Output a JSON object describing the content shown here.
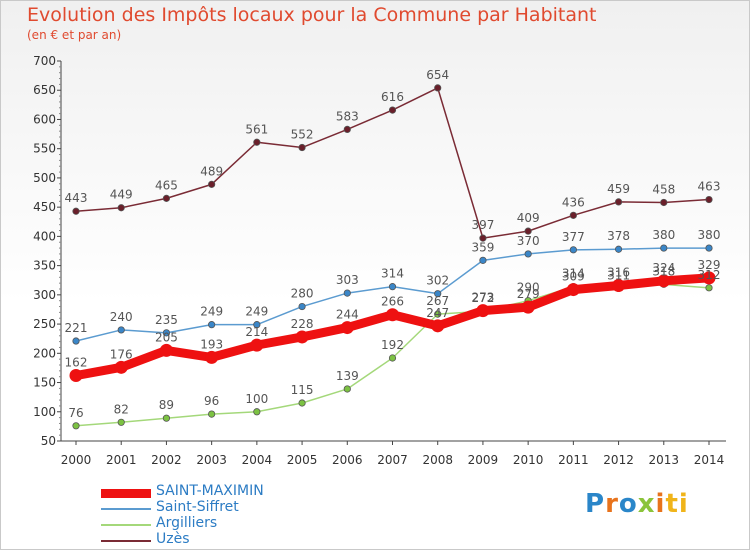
{
  "chart_data": {
    "type": "line",
    "title": "Evolution des Impôts locaux pour la Commune par Habitant",
    "subtitle": "(en € et par an)",
    "xlabel": "",
    "ylabel": "",
    "ylim": [
      50,
      700
    ],
    "yticks": [
      50,
      100,
      150,
      200,
      250,
      300,
      350,
      400,
      450,
      500,
      550,
      600,
      650,
      700
    ],
    "grid": false,
    "legend_position": "bottom-left",
    "categories": [
      "2000",
      "2001",
      "2002",
      "2003",
      "2004",
      "2005",
      "2006",
      "2007",
      "2008",
      "2009",
      "2010",
      "2011",
      "2012",
      "2013",
      "2014"
    ],
    "series": [
      {
        "name": "Uzès",
        "color": "#7a2b35",
        "marker": "#6a1f2a",
        "values": [
          443,
          449,
          465,
          489,
          561,
          552,
          583,
          616,
          654,
          397,
          409,
          436,
          459,
          458,
          463
        ],
        "labels": [
          "443",
          "449",
          "465",
          "489",
          "561",
          "552",
          "583",
          "616",
          "654",
          "397",
          "409",
          "436",
          "459",
          "458",
          "463"
        ]
      },
      {
        "name": "Saint-Siffret",
        "color": "#5b9bd0",
        "marker": "#3a86c8",
        "values": [
          221,
          240,
          235,
          249,
          249,
          280,
          303,
          314,
          302,
          359,
          370,
          377,
          378,
          380,
          380
        ],
        "labels": [
          "221",
          "240",
          "235",
          "249",
          "249",
          "280",
          "303",
          "314",
          "302",
          "359",
          "370",
          "377",
          "378",
          "380",
          "380"
        ]
      },
      {
        "name": "Argilliers",
        "color": "#a4d87a",
        "marker": "#7cc242",
        "values": [
          76,
          82,
          89,
          96,
          100,
          115,
          139,
          192,
          267,
          272,
          290,
          314,
          311,
          318,
          312
        ],
        "labels": [
          "76",
          "82",
          "89",
          "96",
          "100",
          "115",
          "139",
          "192",
          "267",
          "272",
          "290",
          "314",
          "311",
          "318",
          "312"
        ]
      },
      {
        "name": "SAINT-MAXIMIN",
        "color": "#ee1111",
        "marker": "#ee1111",
        "values": [
          162,
          176,
          205,
          193,
          214,
          228,
          244,
          266,
          247,
          273,
          279,
          309,
          316,
          324,
          329
        ],
        "labels": [
          "162",
          "176",
          "205",
          "193",
          "214",
          "228",
          "244",
          "266",
          "247",
          "273",
          "279",
          "309",
          "316",
          "324",
          "329"
        ]
      }
    ]
  },
  "legend": {
    "items": [
      {
        "label": "SAINT-MAXIMIN",
        "color": "#ee1111"
      },
      {
        "label": "Saint-Siffret",
        "color": "#5b9bd0"
      },
      {
        "label": "Argilliers",
        "color": "#a4d87a"
      },
      {
        "label": "Uzès",
        "color": "#7a2b35"
      }
    ]
  },
  "logo": {
    "text": "Proxiti",
    "letters": [
      "P",
      "r",
      "o",
      "x",
      "i",
      "ti"
    ]
  }
}
